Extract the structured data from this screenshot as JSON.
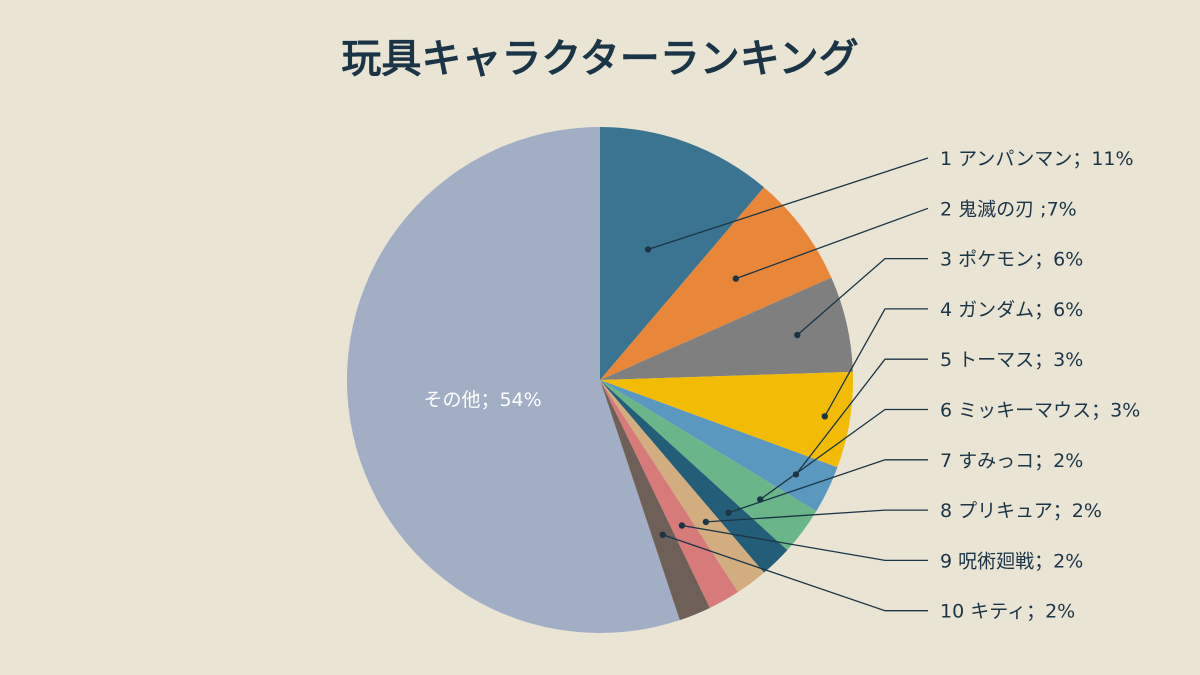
{
  "chart_data": {
    "type": "pie",
    "title": "玩具キャラクターランキング",
    "slices": [
      {
        "label": "1 アンパンマン；11%",
        "name": "アンパンマン",
        "value": 11,
        "color": "#3b7491"
      },
      {
        "label": "2 鬼滅の刃 ;7%",
        "name": "鬼滅の刃",
        "value": 7,
        "color": "#e8873a"
      },
      {
        "label": "3 ポケモン；6%",
        "name": "ポケモン",
        "value": 6,
        "color": "#7f7f7f"
      },
      {
        "label": "4 ガンダム；6%",
        "name": "ガンダム",
        "value": 6,
        "color": "#f1bc03"
      },
      {
        "label": "5 トーマス；3%",
        "name": "トーマス",
        "value": 3,
        "color": "#5b98bf"
      },
      {
        "label": "6 ミッキーマウス；3%",
        "name": "ミッキーマウス",
        "value": 3,
        "color": "#6ab58a"
      },
      {
        "label": "7 すみっコ；2%",
        "name": "すみっコ",
        "value": 2,
        "color": "#245d77"
      },
      {
        "label": "8 プリキュア；2%",
        "name": "プリキュア",
        "value": 2,
        "color": "#d1ad80"
      },
      {
        "label": "9 呪術廻戦；2%",
        "name": "呪術廻戦",
        "value": 2,
        "color": "#d77a7a"
      },
      {
        "label": "10 キティ；2%",
        "name": "キティ",
        "value": 2,
        "color": "#6e6058"
      },
      {
        "label": "その他；54%",
        "name": "その他",
        "value": 54,
        "color": "#a1aec4"
      }
    ]
  }
}
